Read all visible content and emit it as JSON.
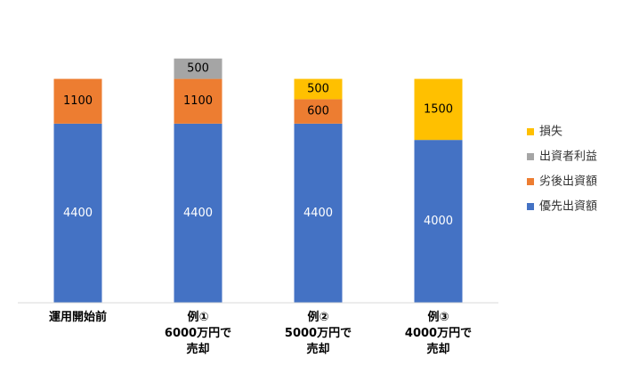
{
  "chart_data": {
    "type": "stacked_bar",
    "categories": [
      "運用開始前",
      "例①\n6000万円で\n売却",
      "例②\n5000万円で\n売却",
      "例③\n4000万円で\n売却"
    ],
    "series": [
      {
        "name": "優先出資額",
        "color": "#4472c4",
        "values": [
          4400,
          4400,
          4400,
          4000
        ]
      },
      {
        "name": "劣後出資額",
        "color": "#ed7d31",
        "values": [
          1100,
          1100,
          600,
          null
        ]
      },
      {
        "name": "出資者利益",
        "color": "#a5a5a5",
        "values": [
          null,
          500,
          null,
          null
        ]
      },
      {
        "name": "損失",
        "color": "#ffc000",
        "values": [
          null,
          null,
          500,
          1500
        ]
      }
    ],
    "ylim": [
      0,
      7000
    ],
    "legend": "right"
  }
}
